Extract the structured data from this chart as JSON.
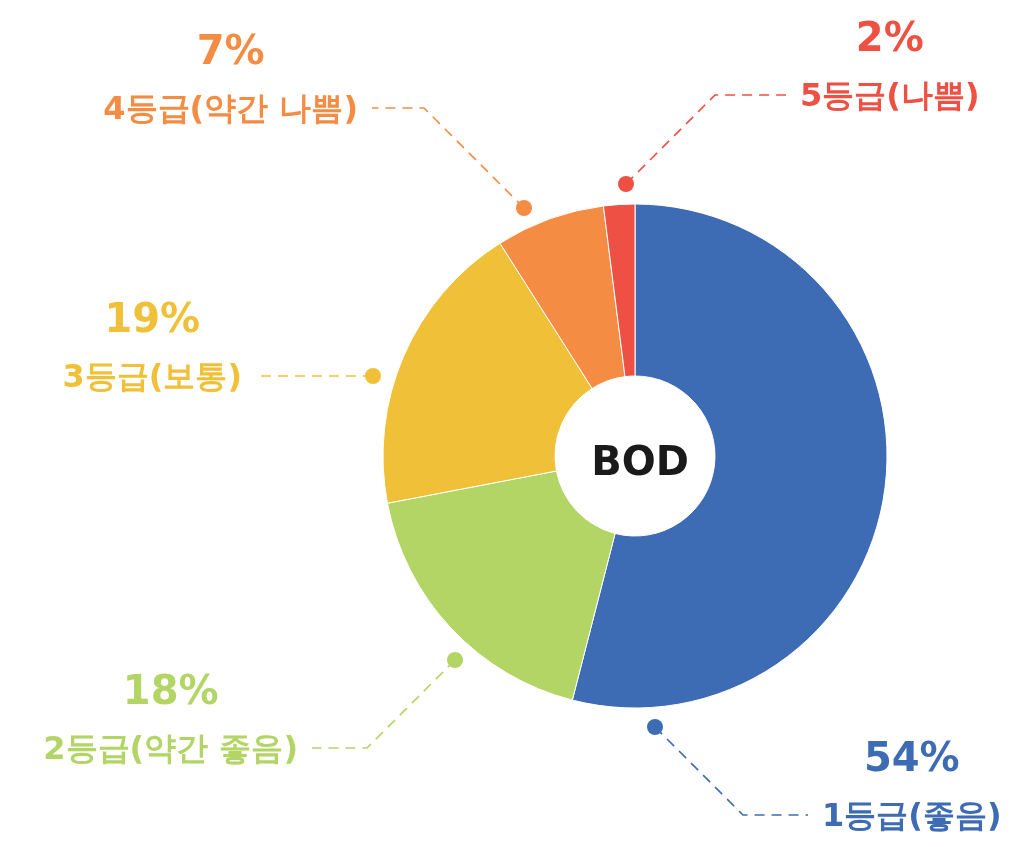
{
  "chart_data": {
    "type": "donut",
    "title": "BOD",
    "categories": [
      "1등급(좋음)",
      "2등급(약간 좋음)",
      "3등급(보통)",
      "4등급(약간 나쁨)",
      "5등급(나쁨)"
    ],
    "values": [
      54,
      18,
      19,
      7,
      2
    ],
    "value_labels": [
      "54%",
      "18%",
      "19%",
      "7%",
      "2%"
    ],
    "colors": [
      "#3d6cb5",
      "#b3d565",
      "#f0c038",
      "#f48c44",
      "#ee5144"
    ],
    "legend": false
  }
}
